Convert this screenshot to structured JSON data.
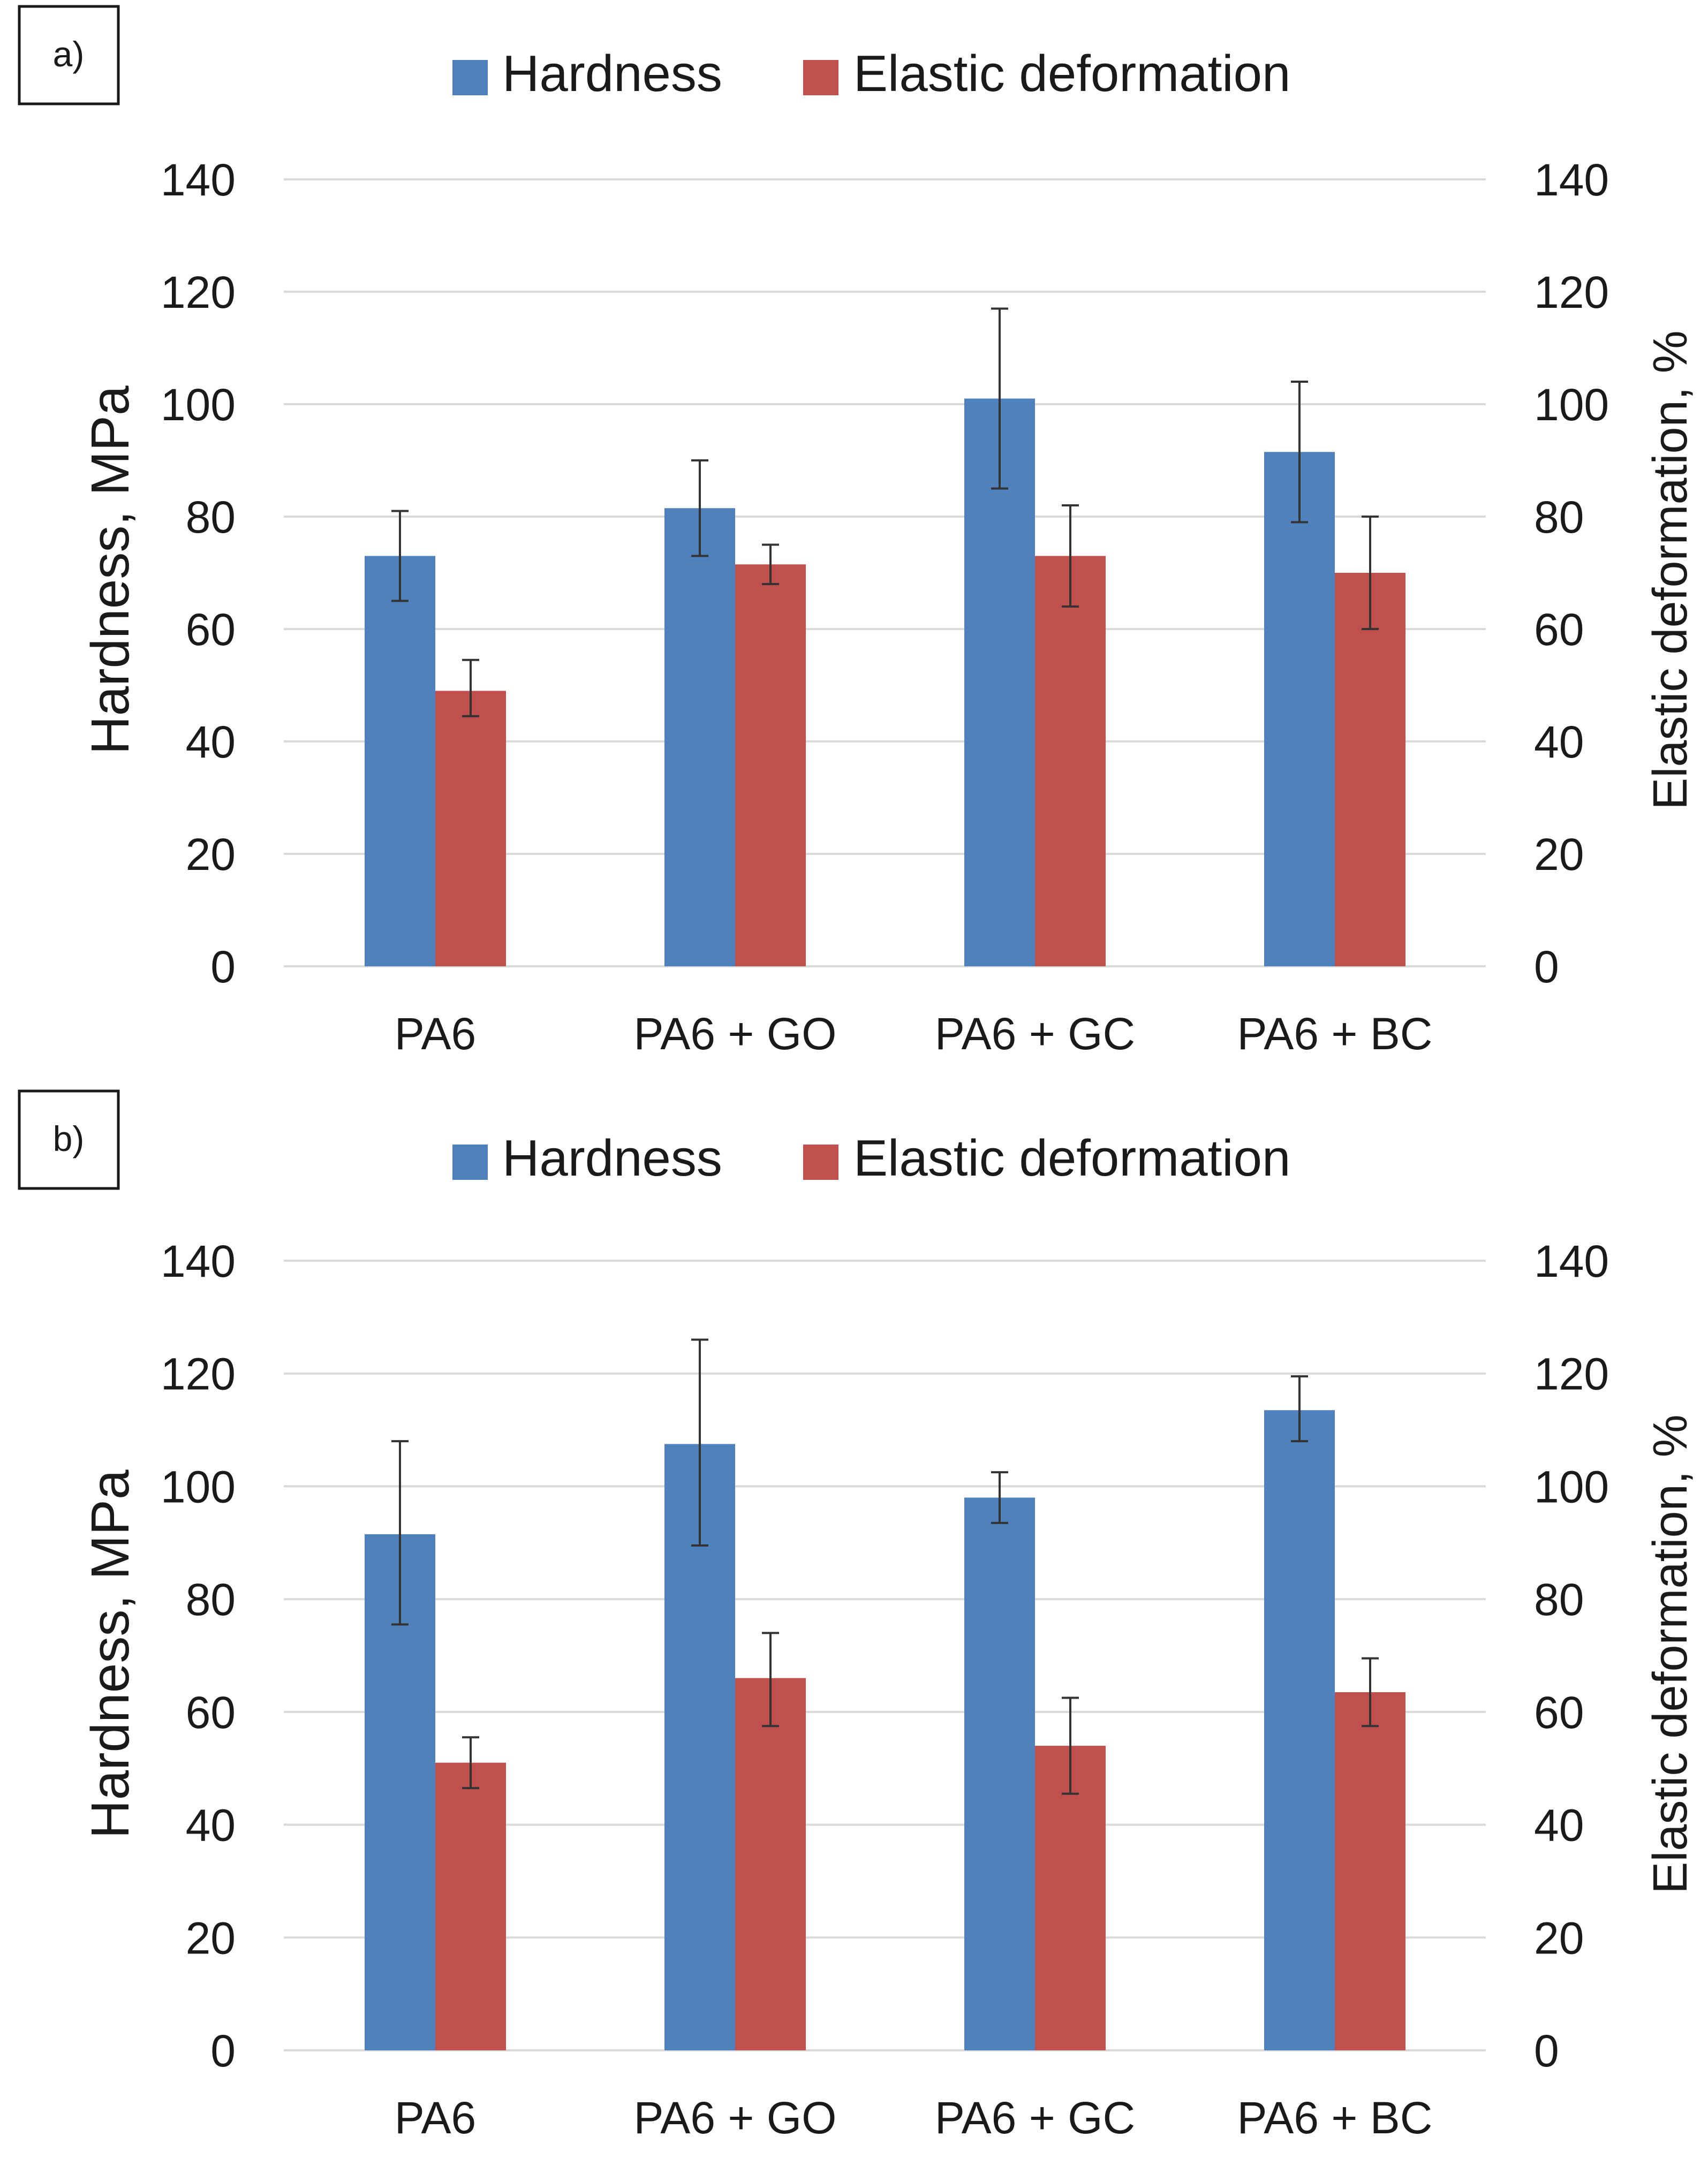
{
  "colors": {
    "hardness": "#4f81bd",
    "elastic": "#c0504d",
    "grid": "#d9d9d9",
    "error": "#333333",
    "text": "#1a1a1a"
  },
  "chart_data": [
    {
      "panel_label": "a)",
      "type": "bar",
      "categories": [
        "PA6",
        "PA6 + GO",
        "PA6 + GC",
        "PA6 + BC"
      ],
      "legend": [
        "Hardness",
        "Elastic deformation"
      ],
      "legend_position": "top-center",
      "ylabel": "Hardness, MPa",
      "y2label": "Elastic deformation, %",
      "ylim": [
        0,
        140
      ],
      "y2lim": [
        0,
        140
      ],
      "yticks": [
        "0",
        "20",
        "40",
        "60",
        "80",
        "100",
        "120",
        "140"
      ],
      "y2ticks": [
        "0",
        "20",
        "40",
        "60",
        "80",
        "100",
        "120",
        "140"
      ],
      "grid": true,
      "series": [
        {
          "name": "Hardness",
          "axis": "left",
          "values": [
            73,
            81.5,
            101,
            91.5
          ],
          "err_low": [
            65,
            73,
            85,
            79
          ],
          "err_high": [
            81,
            90,
            117,
            104
          ]
        },
        {
          "name": "Elastic deformation",
          "axis": "right",
          "values": [
            49,
            71.5,
            73,
            70
          ],
          "err_low": [
            44.5,
            68,
            64,
            60
          ],
          "err_high": [
            54.5,
            75,
            82,
            80
          ]
        }
      ]
    },
    {
      "panel_label": "b)",
      "type": "bar",
      "categories": [
        "PA6",
        "PA6 + GO",
        "PA6 + GC",
        "PA6 + BC"
      ],
      "legend": [
        "Hardness",
        "Elastic deformation"
      ],
      "legend_position": "top-center",
      "ylabel": "Hardness, MPa",
      "y2label": "Elastic deformation, %",
      "ylim": [
        0,
        140
      ],
      "y2lim": [
        0,
        140
      ],
      "yticks": [
        "0",
        "20",
        "40",
        "60",
        "80",
        "100",
        "120",
        "140"
      ],
      "y2ticks": [
        "0",
        "20",
        "40",
        "60",
        "80",
        "100",
        "120",
        "140"
      ],
      "grid": true,
      "series": [
        {
          "name": "Hardness",
          "axis": "left",
          "values": [
            91.5,
            107.5,
            98,
            113.5
          ],
          "err_low": [
            75.5,
            89.5,
            93.5,
            108
          ],
          "err_high": [
            108,
            126,
            102.5,
            119.5
          ]
        },
        {
          "name": "Elastic deformation",
          "axis": "right",
          "values": [
            51,
            66,
            54,
            63.5
          ],
          "err_low": [
            46.5,
            57.5,
            45.5,
            57.5
          ],
          "err_high": [
            55.5,
            74,
            62.5,
            69.5
          ]
        }
      ]
    }
  ]
}
